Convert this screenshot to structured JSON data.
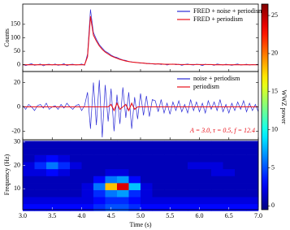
{
  "chart_data": [
    {
      "type": "line",
      "ylabel": "Counts",
      "ylim": [
        -25,
        225
      ],
      "yticks": [
        0,
        50,
        100,
        150
      ],
      "legend": "upper right",
      "x": [
        3.0,
        3.05,
        3.1,
        3.15,
        3.2,
        3.25,
        3.3,
        3.35,
        3.4,
        3.45,
        3.5,
        3.55,
        3.6,
        3.65,
        3.7,
        3.75,
        3.8,
        3.85,
        3.9,
        3.95,
        4.0,
        4.05,
        4.1,
        4.15,
        4.2,
        4.25,
        4.3,
        4.35,
        4.4,
        4.45,
        4.5,
        4.55,
        4.6,
        4.65,
        4.7,
        4.75,
        4.8,
        4.85,
        4.9,
        4.95,
        5.0,
        5.05,
        5.1,
        5.15,
        5.2,
        5.25,
        5.3,
        5.35,
        5.4,
        5.45,
        5.5,
        5.55,
        5.6,
        5.65,
        5.7,
        5.75,
        5.8,
        5.85,
        5.9,
        5.95,
        6.0,
        6.05,
        6.1,
        6.15,
        6.2,
        6.25,
        6.3,
        6.35,
        6.4,
        6.45,
        6.5,
        6.55,
        6.6,
        6.65,
        6.7,
        6.75,
        6.8,
        6.85,
        6.9,
        6.95,
        7.0
      ],
      "series": [
        {
          "name": "FRED + noise + periodism",
          "color": "#2b2bd6",
          "values": [
            2,
            -3,
            1,
            4,
            -2,
            0,
            3,
            -4,
            1,
            2,
            -1,
            3,
            -2,
            0,
            4,
            -3,
            1,
            2,
            -1,
            0,
            3,
            -2,
            40,
            205,
            120,
            95,
            75,
            62,
            50,
            44,
            36,
            30,
            27,
            22,
            18,
            16,
            12,
            11,
            9,
            8,
            6,
            7,
            4,
            5,
            3,
            2,
            4,
            1,
            3,
            -1,
            2,
            3,
            0,
            2,
            -2,
            1,
            3,
            0,
            -1,
            2,
            1,
            -3,
            2,
            0,
            1,
            -2,
            3,
            1,
            -1,
            2,
            0,
            -2,
            1,
            3,
            -1,
            0,
            2,
            -1,
            1,
            0,
            2
          ]
        },
        {
          "name": "FRED + periodism",
          "color": "#e8101a",
          "values": [
            0,
            0,
            0,
            0,
            0,
            0,
            0,
            0,
            0,
            0,
            0,
            0,
            0,
            0,
            0,
            0,
            0,
            0,
            0,
            0,
            0,
            0,
            30,
            180,
            110,
            88,
            70,
            57,
            47,
            40,
            33,
            28,
            24,
            20,
            17,
            14,
            12,
            10,
            9,
            8,
            7,
            6,
            5,
            4,
            4,
            3,
            3,
            3,
            2,
            2,
            2,
            2,
            2,
            1,
            1,
            1,
            1,
            1,
            1,
            1,
            1,
            1,
            1,
            1,
            1,
            0,
            0,
            0,
            0,
            0,
            0,
            0,
            0,
            0,
            0,
            0,
            0,
            0,
            0,
            0,
            0
          ]
        }
      ]
    },
    {
      "type": "line",
      "ylim": [
        -27,
        29
      ],
      "yticks": [
        -20,
        0,
        20
      ],
      "legend": "upper right",
      "annotation": "A = 3.0, τ = 0.5, f = 12.4",
      "x": [
        3.0,
        3.05,
        3.1,
        3.15,
        3.2,
        3.25,
        3.3,
        3.35,
        3.4,
        3.45,
        3.5,
        3.55,
        3.6,
        3.65,
        3.7,
        3.75,
        3.8,
        3.85,
        3.9,
        3.95,
        4.0,
        4.05,
        4.1,
        4.15,
        4.2,
        4.25,
        4.3,
        4.35,
        4.4,
        4.45,
        4.5,
        4.55,
        4.6,
        4.65,
        4.7,
        4.75,
        4.8,
        4.85,
        4.9,
        4.95,
        5.0,
        5.05,
        5.1,
        5.15,
        5.2,
        5.25,
        5.3,
        5.35,
        5.4,
        5.45,
        5.5,
        5.55,
        5.6,
        5.65,
        5.7,
        5.75,
        5.8,
        5.85,
        5.9,
        5.95,
        6.0,
        6.05,
        6.1,
        6.15,
        6.2,
        6.25,
        6.3,
        6.35,
        6.4,
        6.45,
        6.5,
        6.55,
        6.6,
        6.65,
        6.7,
        6.75,
        6.8,
        6.85,
        6.9,
        6.95,
        7.0
      ],
      "series": [
        {
          "name": "noise + periodism",
          "color": "#2b2bd6",
          "values": [
            1,
            -2,
            2,
            0,
            -3,
            1,
            2,
            -1,
            3,
            -2,
            0,
            1,
            -2,
            2,
            -1,
            3,
            0,
            -2,
            1,
            2,
            -3,
            1,
            12,
            -18,
            20,
            -15,
            22,
            -25,
            18,
            -12,
            15,
            -20,
            10,
            -14,
            16,
            -9,
            12,
            -18,
            8,
            -10,
            11,
            -7,
            9,
            -8,
            6,
            5,
            -4,
            6,
            -5,
            3,
            -6,
            4,
            -3,
            5,
            -4,
            2,
            -5,
            6,
            -3,
            4,
            -4,
            3,
            -5,
            5,
            -2,
            4,
            -3,
            6,
            -4,
            2,
            -5,
            3,
            -3,
            4,
            -2,
            5,
            -4,
            3,
            -3,
            2,
            -4
          ]
        },
        {
          "name": "periodism",
          "color": "#e8101a",
          "values": [
            0,
            0,
            0,
            0,
            0,
            0,
            0,
            0,
            0,
            0,
            0,
            0,
            0,
            0,
            0,
            0,
            0,
            0,
            0,
            0,
            0,
            0,
            0,
            0,
            0,
            0,
            0,
            0,
            0,
            0,
            2,
            -3,
            3,
            -2,
            0,
            2,
            -3,
            3,
            -2,
            0,
            0,
            0,
            0,
            0,
            0,
            0,
            0,
            0,
            0,
            0,
            0,
            0,
            0,
            0,
            0,
            0,
            0,
            0,
            0,
            0,
            0,
            0,
            0,
            0,
            0,
            0,
            0,
            0,
            0,
            0,
            0,
            0,
            0,
            0,
            0,
            0,
            0,
            0,
            0,
            0,
            0
          ]
        }
      ]
    },
    {
      "type": "heatmap",
      "xlabel": "Time (s)",
      "ylabel": "Frequency (Hz)",
      "xlim": [
        3,
        7
      ],
      "xticks": [
        {
          "value": 3,
          "label": "3.0"
        },
        3.5,
        {
          "value": 4,
          "label": "4.0"
        },
        4.5,
        {
          "value": 5,
          "label": "5.0"
        },
        5.5,
        {
          "value": 6,
          "label": "6.0"
        },
        6.5,
        {
          "value": 7,
          "label": "7.0"
        }
      ],
      "ylim": [
        1,
        31
      ],
      "yticks": [
        10,
        20,
        30
      ],
      "colormap": "jet",
      "x": [
        3.1,
        3.3,
        3.5,
        3.7,
        3.9,
        4.1,
        4.3,
        4.5,
        4.7,
        4.9,
        5.1,
        5.3,
        5.5,
        5.7,
        5.9,
        6.1,
        6.3,
        6.5,
        6.7,
        6.9
      ],
      "y": [
        2,
        5,
        8,
        11,
        14,
        17,
        20,
        23,
        26,
        29
      ],
      "z": [
        [
          3,
          3,
          3,
          3,
          3,
          3,
          4,
          5,
          5,
          4,
          3,
          3,
          3,
          3,
          3,
          3,
          3,
          3,
          3,
          3
        ],
        [
          2,
          2,
          2,
          2,
          2,
          2,
          3,
          4,
          4,
          3,
          2,
          2,
          2,
          2,
          2,
          2,
          2,
          2,
          2,
          2
        ],
        [
          1,
          1,
          1,
          1,
          1,
          2,
          4,
          6,
          7,
          4,
          2,
          1,
          1,
          1,
          1,
          1,
          1,
          1,
          1,
          1
        ],
        [
          1,
          1,
          1,
          1,
          1,
          2,
          6,
          18,
          24,
          8,
          2,
          1,
          1,
          1,
          1,
          1,
          1,
          1,
          1,
          1
        ],
        [
          1,
          1,
          1,
          1,
          1,
          1,
          3,
          6,
          7,
          3,
          1,
          1,
          1,
          1,
          1,
          1,
          1,
          1,
          1,
          1
        ],
        [
          2,
          2,
          3,
          2,
          1,
          1,
          1,
          2,
          2,
          1,
          1,
          1,
          1,
          1,
          1,
          1,
          2,
          2,
          1,
          1
        ],
        [
          2,
          4,
          6,
          4,
          2,
          1,
          1,
          1,
          1,
          1,
          1,
          1,
          1,
          1,
          2,
          2,
          2,
          1,
          1,
          1
        ],
        [
          1,
          2,
          3,
          2,
          1,
          1,
          1,
          1,
          1,
          1,
          1,
          1,
          1,
          1,
          1,
          1,
          1,
          1,
          1,
          1
        ],
        [
          1,
          1,
          1,
          1,
          1,
          1,
          1,
          1,
          1,
          1,
          1,
          1,
          1,
          1,
          1,
          1,
          1,
          1,
          1,
          1
        ],
        [
          1,
          1,
          1,
          1,
          1,
          1,
          1,
          1,
          1,
          1,
          1,
          1,
          1,
          1,
          1,
          1,
          1,
          1,
          1,
          1
        ]
      ],
      "colorbar": {
        "label": "WWZ power",
        "lim": [
          -0.5,
          26.5
        ],
        "ticks": [
          0,
          5,
          10,
          15,
          20,
          25
        ]
      }
    }
  ]
}
